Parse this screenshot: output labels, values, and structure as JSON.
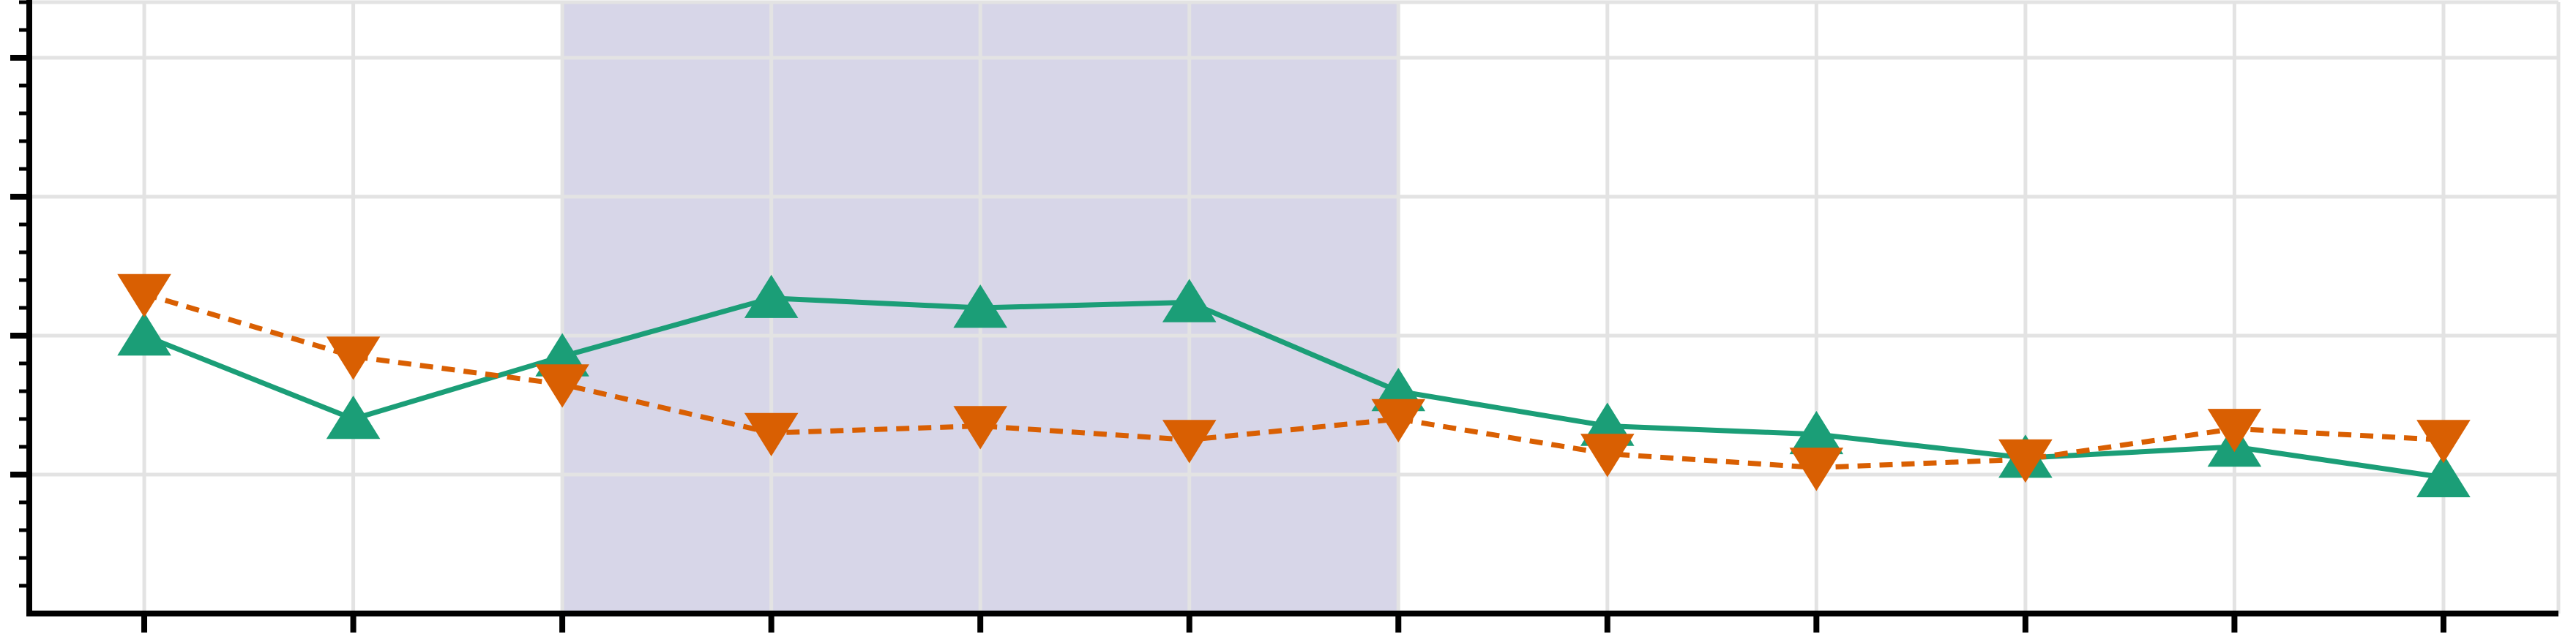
{
  "chart_data": {
    "type": "line",
    "title": "",
    "xlabel": "",
    "ylabel": "",
    "x": [
      0,
      1,
      2,
      3,
      4,
      5,
      6,
      7,
      8,
      9,
      10,
      11
    ],
    "xlim": [
      -0.55,
      11.55
    ],
    "ylim": [
      0.0,
      4.4
    ],
    "y_major_ticks": [
      1,
      2,
      3,
      4
    ],
    "y_minor_step": 0.2,
    "grid": true,
    "legend": "none",
    "highlight_span": {
      "x_start": 2,
      "x_end": 6,
      "color": "#d7d6e8"
    },
    "series": [
      {
        "values": [
          2.0,
          1.4,
          1.85,
          2.27,
          2.2,
          2.24,
          1.6,
          1.35,
          1.29,
          1.12,
          1.2,
          0.98
        ],
        "color": "#1b9e77",
        "line_style": "solid",
        "marker": "triangle-up"
      },
      {
        "values": [
          2.3,
          1.85,
          1.65,
          1.3,
          1.35,
          1.25,
          1.4,
          1.15,
          1.05,
          1.11,
          1.33,
          1.25
        ],
        "color": "#d95f02",
        "line_style": "dashed",
        "marker": "triangle-down"
      }
    ],
    "colors": {
      "grid": "#e3e3e3",
      "axis": "#000000"
    }
  }
}
